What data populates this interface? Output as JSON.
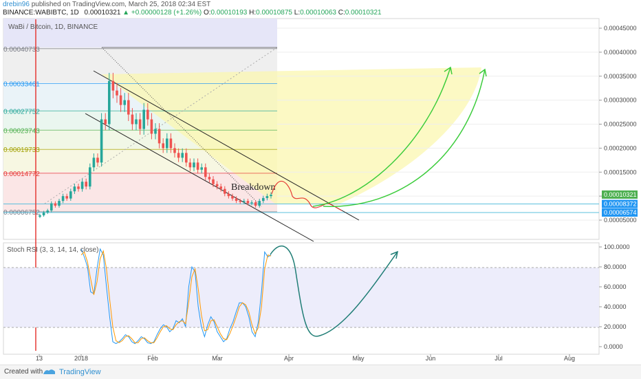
{
  "header": {
    "author": "drebin96",
    "published_text": "published on TradingView.com, March 25, 2018 02:34 EST",
    "symbol": "BINANCE:WABIBTC, 1D",
    "last": "0.00010321",
    "change_arrow": "▲",
    "change": "+0.00000128 (+1.26%)",
    "open_label": "O:",
    "open": "0.00010193",
    "high_label": "H:",
    "high": "0.00010875",
    "low_label": "L:",
    "low": "0.00010063",
    "close_label": "C:",
    "close": "0.00010321"
  },
  "footer": {
    "made_with": "Created with",
    "brand": "TradingView"
  },
  "chart_data": [
    {
      "type": "candlestick",
      "title": "WaBi / Bitcoin, 1D, BINANCE",
      "ylim": [
        3e-05,
        0.00048
      ],
      "y_ticks": [
        "0.00045000",
        "0.00040000",
        "0.00035000",
        "0.00030000",
        "0.00025000",
        "0.00020000",
        "0.00015000",
        "0.00010000",
        "0.00005000"
      ],
      "x_ticks": [
        "13",
        "2018",
        "Feb",
        "Mar",
        "Apr",
        "May",
        "Jun",
        "Jul",
        "Aug"
      ],
      "fib_levels": [
        {
          "label": "0.00040733",
          "value": 0.00040733,
          "color": "#787b86"
        },
        {
          "label": "0.00033461",
          "value": 0.00033461,
          "color": "#2196f3"
        },
        {
          "label": "0.00027752",
          "value": 0.00027752,
          "color": "#26a69a"
        },
        {
          "label": "0.00023743",
          "value": 0.00023743,
          "color": "#4caf50"
        },
        {
          "label": "0.00019733",
          "value": 0.00019733,
          "color": "#a0a000"
        },
        {
          "label": "0.00014772",
          "value": 0.00014772,
          "color": "#e53935"
        },
        {
          "label": "0.00006752",
          "value": 6.752e-05,
          "color": "#787b86"
        }
      ],
      "horizontal_lines": [
        {
          "label": "0.00008372",
          "value": 8.372e-05
        },
        {
          "label": "0.00006574",
          "value": 6.574e-05
        }
      ],
      "price_tags": [
        {
          "label": "0.00010321",
          "value": 0.00010321,
          "color": "#4caf50"
        },
        {
          "label": "0.00008372",
          "value": 8.372e-05,
          "color": "#2196f3"
        },
        {
          "label": "0.00006574",
          "value": 6.574e-05,
          "color": "#2196f3"
        }
      ],
      "annotation": "Breakdown",
      "closes": [
        6e-05,
        6.6e-05,
        7e-05,
        8.5e-05,
        8e-05,
        9e-05,
        0.0001,
        9.5e-05,
        0.00011,
        0.00012,
        0.000115,
        0.00013,
        0.00012,
        0.00016,
        0.00018,
        0.00017,
        0.00026,
        0.00025,
        0.00034,
        0.00032,
        0.00031,
        0.00029,
        0.0003,
        0.00027,
        0.00025,
        0.00026,
        0.00024,
        0.00028,
        0.00026,
        0.00023,
        0.00024,
        0.00021,
        0.0002,
        0.00022,
        0.0002,
        0.00019,
        0.00018,
        0.00019,
        0.00017,
        0.00016,
        0.00017,
        0.000155,
        0.00016,
        0.00014,
        0.000135,
        0.000125,
        0.00012,
        0.000115,
        0.000105,
        0.0001,
        9.5e-05,
        9e-05,
        8.8e-05,
        9e-05,
        8.5e-05,
        8.7e-05,
        8e-05,
        9e-05,
        9.6e-05,
        0.0001,
        0.000103
      ]
    },
    {
      "type": "line",
      "title": "Stoch RSI (3, 3, 14, 14, close)",
      "ylim": [
        -5,
        105
      ],
      "y_ticks": [
        "100.0000",
        "80.0000",
        "60.0000",
        "40.0000",
        "20.0000",
        "0.0000"
      ],
      "bands": [
        20,
        80
      ],
      "series": [
        {
          "color": "#2196f3",
          "values": [
            98,
            90,
            80,
            55,
            53,
            78,
            98,
            92,
            60,
            30,
            5,
            3,
            5,
            8,
            12,
            10,
            5,
            3,
            6,
            10,
            8,
            4,
            3,
            5,
            12,
            18,
            22,
            20,
            15,
            18,
            26,
            24,
            28,
            20,
            60,
            80,
            75,
            40,
            20,
            10,
            22,
            30,
            25,
            15,
            10,
            5,
            8,
            18,
            25,
            35,
            44,
            44,
            40,
            30,
            15,
            10,
            25,
            55,
            95,
            90,
            92
          ]
        },
        {
          "color": "#ff9800",
          "values": [
            92,
            95,
            85,
            68,
            52,
            65,
            88,
            96,
            78,
            48,
            20,
            6,
            4,
            6,
            10,
            11,
            8,
            4,
            4,
            8,
            9,
            6,
            4,
            4,
            9,
            15,
            20,
            21,
            18,
            17,
            22,
            25,
            26,
            23,
            45,
            70,
            78,
            58,
            32,
            16,
            17,
            26,
            27,
            20,
            13,
            8,
            7,
            13,
            21,
            30,
            40,
            44,
            42,
            35,
            22,
            13,
            19,
            40,
            78,
            92,
            91
          ]
        }
      ]
    }
  ]
}
